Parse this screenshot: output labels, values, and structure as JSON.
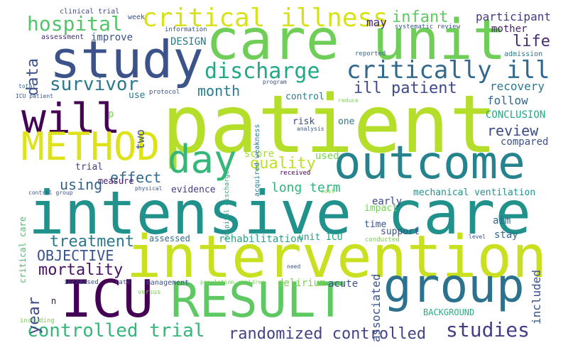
{
  "words": [
    {
      "text": "patient",
      "color": "#b5de2b"
    },
    {
      "text": "intensive care",
      "color": "#21918c"
    },
    {
      "text": "intervention",
      "color": "#c8e020"
    },
    {
      "text": "care unit",
      "color": "#6ece58"
    },
    {
      "text": "study",
      "color": "#3b528b"
    },
    {
      "text": "outcome",
      "color": "#25838e"
    },
    {
      "text": "RESULT",
      "color": "#5ec962"
    },
    {
      "text": "ICU",
      "color": "#440154"
    },
    {
      "text": "group",
      "color": "#2c728e"
    },
    {
      "text": "will",
      "color": "#440154"
    },
    {
      "text": "METHOD",
      "color": "#dde318"
    },
    {
      "text": "day",
      "color": "#35b779"
    },
    {
      "text": "critical illness",
      "color": "#d8e219"
    },
    {
      "text": "critically ill",
      "color": "#31688e"
    },
    {
      "text": "discharge",
      "color": "#22a884"
    },
    {
      "text": "hospital",
      "color": "#52c569"
    },
    {
      "text": "survivor",
      "color": "#2a788e"
    },
    {
      "text": "controlled trial",
      "color": "#35b779"
    },
    {
      "text": "studies",
      "color": "#433e85"
    },
    {
      "text": "randomized controlled",
      "color": "#414487"
    },
    {
      "text": "mortality",
      "color": "#471365"
    },
    {
      "text": "treatment",
      "color": "#2a788e"
    },
    {
      "text": "OBJECTIVE",
      "color": "#3b528b"
    },
    {
      "text": "ill patient",
      "color": "#3e4989"
    },
    {
      "text": "month",
      "color": "#287d8e"
    },
    {
      "text": "data",
      "color": "#3b528b"
    },
    {
      "text": "infant",
      "color": "#5ec962"
    },
    {
      "text": "life",
      "color": "#482878"
    },
    {
      "text": "quality",
      "color": "#bddf26"
    },
    {
      "text": "effect",
      "color": "#31688e"
    },
    {
      "text": "using",
      "color": "#33638d"
    },
    {
      "text": "review",
      "color": "#3e4989"
    },
    {
      "text": "long term",
      "color": "#2fb47c"
    },
    {
      "text": "year",
      "color": "#3e4989"
    },
    {
      "text": "associated",
      "color": "#3b528b"
    },
    {
      "text": "included",
      "color": "#3b528b"
    },
    {
      "text": "participant",
      "color": "#443983"
    },
    {
      "text": "may",
      "color": "#482173"
    },
    {
      "text": "mother",
      "color": "#482173"
    },
    {
      "text": "recovery",
      "color": "#2a788e"
    },
    {
      "text": "follow",
      "color": "#31688e"
    },
    {
      "text": "CONCLUSION",
      "color": "#22a884"
    },
    {
      "text": "compared",
      "color": "#3b528b"
    },
    {
      "text": "two",
      "color": "#3b528b"
    },
    {
      "text": "score",
      "color": "#a5db36"
    },
    {
      "text": "used",
      "color": "#7ad151"
    },
    {
      "text": "early",
      "color": "#3e4989"
    },
    {
      "text": "mechanical ventilation",
      "color": "#21918c"
    },
    {
      "text": "aim",
      "color": "#31688e"
    },
    {
      "text": "stay",
      "color": "#31688e"
    },
    {
      "text": "time",
      "color": "#3b528b"
    },
    {
      "text": "support",
      "color": "#3b528b"
    },
    {
      "text": "impact",
      "color": "#73d056"
    },
    {
      "text": "acute",
      "color": "#3b528b"
    },
    {
      "text": "delirium",
      "color": "#7ad151"
    },
    {
      "text": "rehabilitation",
      "color": "#20a486"
    },
    {
      "text": "unit ICU",
      "color": "#1fa188"
    },
    {
      "text": "assessed",
      "color": "#31688e"
    },
    {
      "text": "evidence",
      "color": "#433e85"
    },
    {
      "text": "critical care",
      "color": "#4ac16d"
    },
    {
      "text": "improve",
      "color": "#3b528b"
    },
    {
      "text": "DESIGN",
      "color": "#2a788e"
    },
    {
      "text": "risk",
      "color": "#3e4989"
    },
    {
      "text": "one",
      "color": "#2a788e"
    },
    {
      "text": "control",
      "color": "#287d8e"
    },
    {
      "text": "trial",
      "color": "#433e85"
    },
    {
      "text": "measure",
      "color": "#481f70"
    },
    {
      "text": "BACKGROUND",
      "color": "#29af7f"
    },
    {
      "text": "p",
      "color": "#7ad151"
    },
    {
      "text": "use",
      "color": "#2a788e"
    },
    {
      "text": "n",
      "color": "#440154"
    },
    {
      "text": "clinical trial",
      "color": "#404688"
    },
    {
      "text": "week",
      "color": "#3b528b"
    },
    {
      "text": "assessment",
      "color": "#472c7a"
    },
    {
      "text": "information",
      "color": "#3b528b"
    },
    {
      "text": "systematic review",
      "color": "#3b528b"
    },
    {
      "text": "admission",
      "color": "#2a788e"
    },
    {
      "text": "reported",
      "color": "#31688e"
    },
    {
      "text": "protocol",
      "color": "#3b528b"
    },
    {
      "text": "program",
      "color": "#3b528b"
    },
    {
      "text": "acquired weakness",
      "color": "#2a788e"
    },
    {
      "text": "reduce",
      "color": "#7ad151"
    },
    {
      "text": "analysis",
      "color": "#3b528b"
    },
    {
      "text": "total",
      "color": "#31688e"
    },
    {
      "text": "ICU patient",
      "color": "#3b528b"
    },
    {
      "text": "hospital discharge",
      "color": "#22a884"
    },
    {
      "text": "control group",
      "color": "#3b528b"
    },
    {
      "text": "physical",
      "color": "#3b528b"
    },
    {
      "text": "received",
      "color": "#440154"
    },
    {
      "text": "cost",
      "color": "#7ad151"
    },
    {
      "text": "conducted",
      "color": "#7ad151"
    },
    {
      "text": "level",
      "color": "#3b528b"
    },
    {
      "text": "need",
      "color": "#3b528b"
    },
    {
      "text": "increased",
      "color": "#3b528b"
    },
    {
      "text": "rate",
      "color": "#3b528b"
    },
    {
      "text": "management",
      "color": "#3b528b"
    },
    {
      "text": "population children",
      "color": "#7ad151"
    },
    {
      "text": "versus",
      "color": "#7ad151"
    },
    {
      "text": "including",
      "color": "#7ad151"
    }
  ]
}
